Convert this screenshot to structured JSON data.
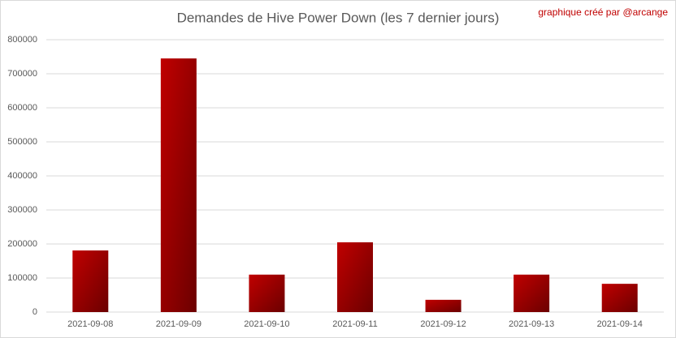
{
  "chart_data": {
    "type": "bar",
    "title": "Demandes de Hive Power Down (les 7 dernier jours)",
    "annotation": "graphique créé par @arcange",
    "categories": [
      "2021-09-08",
      "2021-09-09",
      "2021-09-10",
      "2021-09-11",
      "2021-09-12",
      "2021-09-13",
      "2021-09-14"
    ],
    "values": [
      181000,
      745000,
      110000,
      205000,
      36000,
      110000,
      83000
    ],
    "color": "#c00000",
    "ylim": [
      0,
      800000
    ],
    "yticks": [
      0,
      100000,
      200000,
      300000,
      400000,
      500000,
      600000,
      700000,
      800000
    ],
    "grid": true
  }
}
